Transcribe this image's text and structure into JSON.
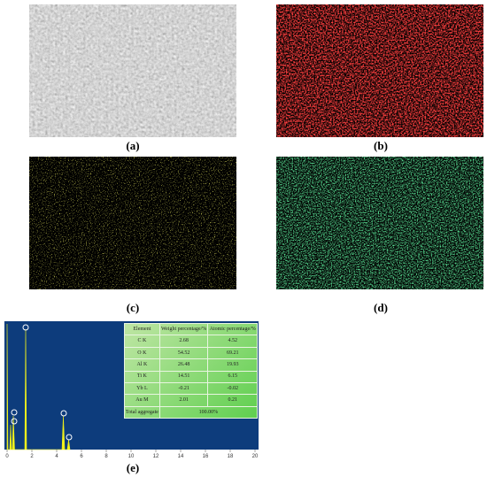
{
  "panels": [
    "(a)",
    "(b)",
    "(c)",
    "(d)",
    "(e)"
  ],
  "spectrum": {
    "xlim": [
      0,
      20
    ],
    "xticks": [
      0,
      2,
      4,
      6,
      8,
      10,
      12,
      14,
      16,
      18,
      20
    ]
  },
  "table": {
    "header": [
      "Element",
      "Weight percentage/%",
      "Atomic percentage/%"
    ],
    "rows": [
      [
        "C K",
        "2.68",
        "4.52"
      ],
      [
        "O K",
        "54.52",
        "69.21"
      ],
      [
        "Al K",
        "26.48",
        "19.93"
      ],
      [
        "Ti K",
        "14.51",
        "6.15"
      ],
      [
        "Yb L",
        "-0.21",
        "-0.02"
      ],
      [
        "Au M",
        "2.01",
        "0.21"
      ]
    ],
    "total": [
      "Total aggregate",
      "100.00%"
    ]
  }
}
